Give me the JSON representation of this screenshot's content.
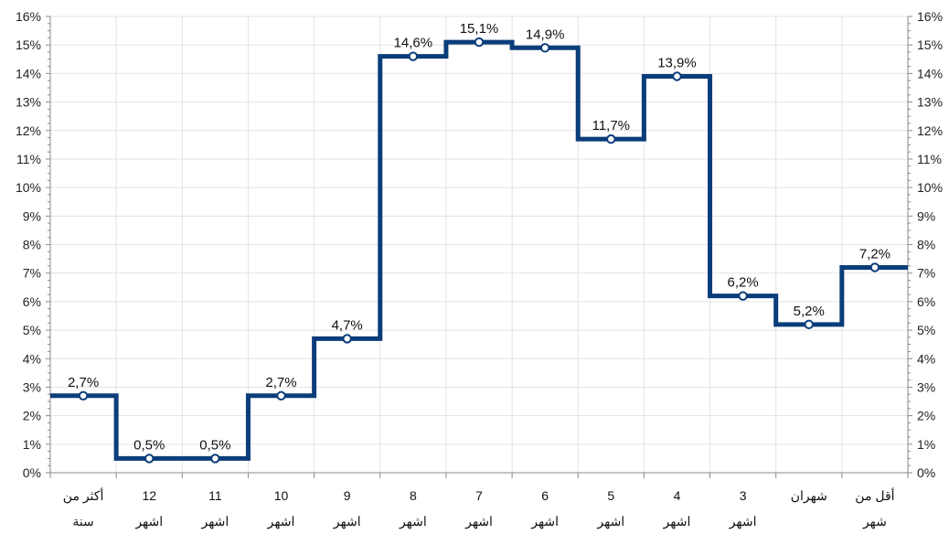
{
  "chart_data": {
    "type": "line",
    "step": true,
    "categories": [
      [
        "أكثر من",
        "سنة"
      ],
      [
        "12",
        "اشهر"
      ],
      [
        "11",
        "اشهر"
      ],
      [
        "10",
        "اشهر"
      ],
      [
        "9",
        "اشهر"
      ],
      [
        "8",
        "اشهر"
      ],
      [
        "7",
        "اشهر"
      ],
      [
        "6",
        "اشهر"
      ],
      [
        "5",
        "اشهر"
      ],
      [
        "4",
        "اشهر"
      ],
      [
        "3",
        "اشهر"
      ],
      [
        "شهران",
        ""
      ],
      [
        "أقل من",
        "شهر"
      ]
    ],
    "values": [
      2.7,
      0.5,
      0.5,
      2.7,
      4.7,
      14.6,
      15.1,
      14.9,
      11.7,
      13.9,
      6.2,
      5.2,
      7.2
    ],
    "data_labels": [
      "2,7%",
      "0,5%",
      "0,5%",
      "2,7%",
      "4,7%",
      "14,6%",
      "15,1%",
      "14,9%",
      "11,7%",
      "13,9%",
      "6,2%",
      "5,2%",
      "7,2%"
    ],
    "ylim": [
      0,
      16
    ],
    "y_ticks": [
      "0%",
      "1%",
      "2%",
      "3%",
      "4%",
      "5%",
      "6%",
      "7%",
      "8%",
      "9%",
      "10%",
      "11%",
      "12%",
      "13%",
      "14%",
      "15%",
      "16%"
    ],
    "y_axis": "both",
    "grid": true,
    "colors": {
      "line": "#0b3d7a",
      "grid": "#e3e3e3",
      "axis": "#8a8a8a"
    }
  }
}
